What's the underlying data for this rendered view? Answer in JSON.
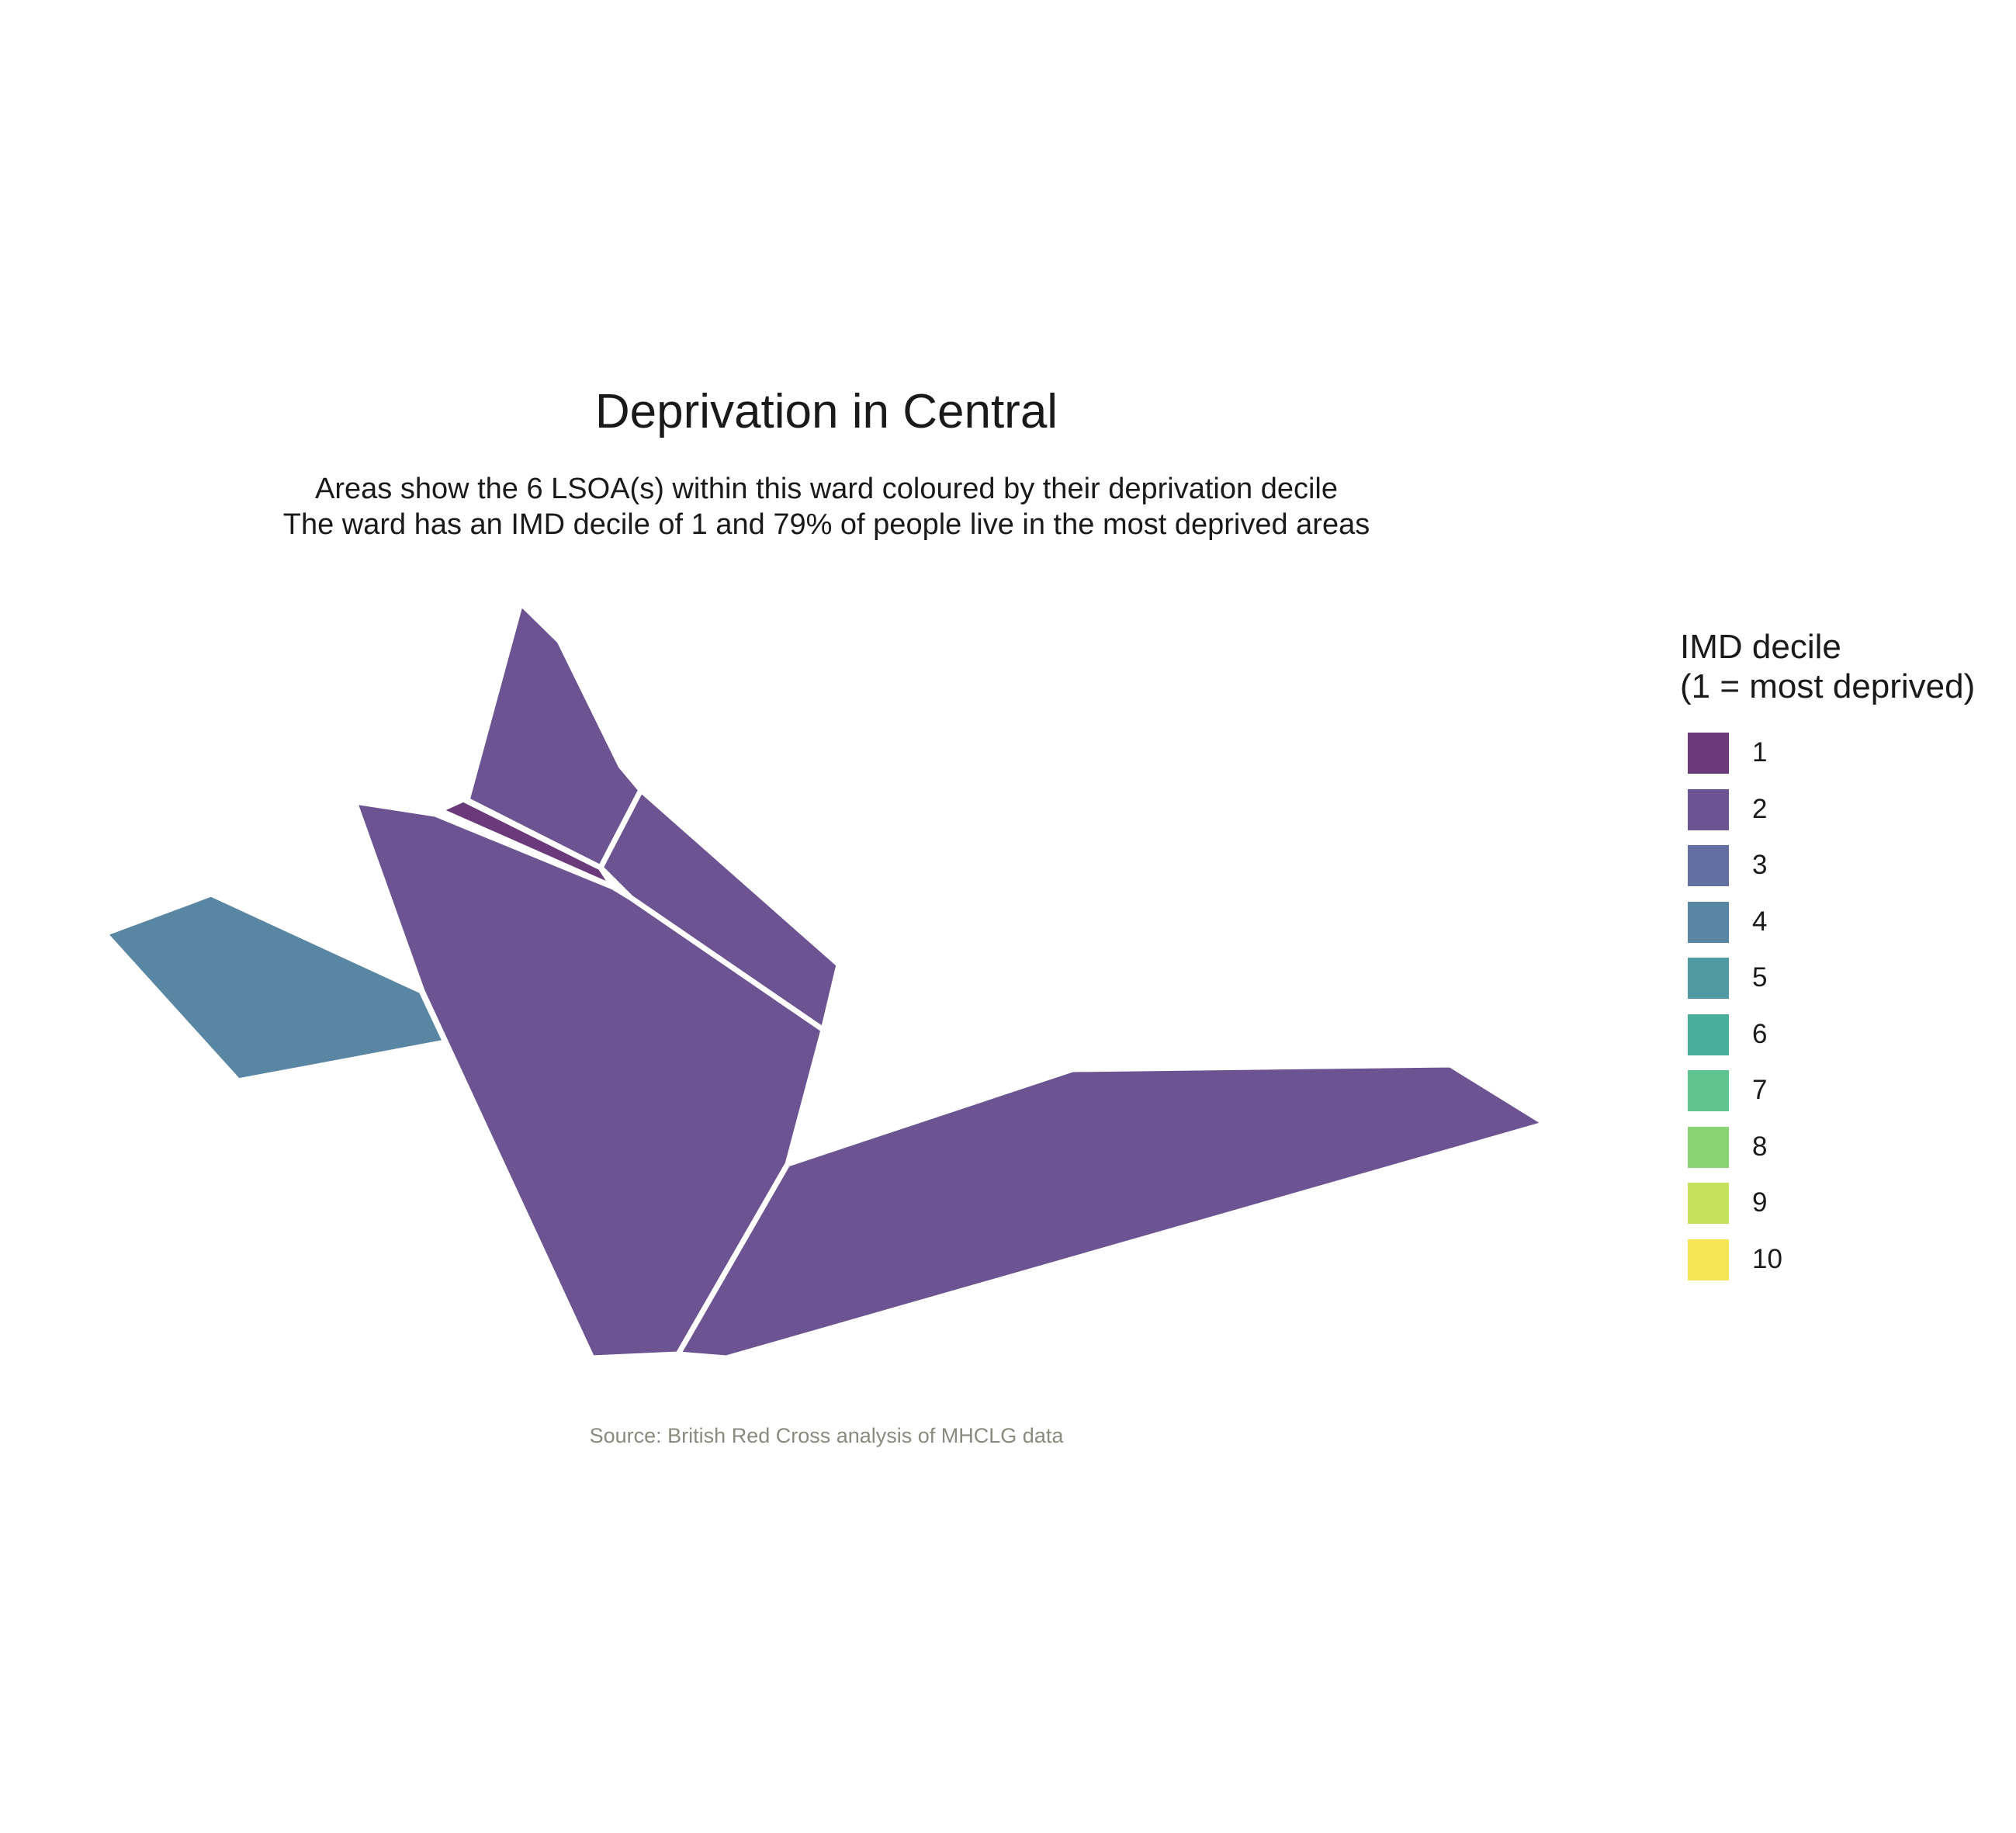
{
  "title": "Deprivation in Central",
  "subtitle": [
    "Areas show the 6 LSOA(s) within this ward coloured by their deprivation decile",
    "The ward has an IMD decile of 1 and 79% of people live in the most deprived areas"
  ],
  "caption": "Source: British Red Cross analysis of MHCLG data",
  "legend": {
    "title_lines": [
      "IMD decile",
      "(1 = most deprived)"
    ],
    "items": [
      {
        "label": "1",
        "color": "#6a3a7a"
      },
      {
        "label": "2",
        "color": "#6c5392"
      },
      {
        "label": "3",
        "color": "#636fa0"
      },
      {
        "label": "4",
        "color": "#5886a3"
      },
      {
        "label": "5",
        "color": "#4f9aa3"
      },
      {
        "label": "6",
        "color": "#4aae9c"
      },
      {
        "label": "7",
        "color": "#5fc490"
      },
      {
        "label": "8",
        "color": "#8bd476"
      },
      {
        "label": "9",
        "color": "#c5e05a"
      },
      {
        "label": "10",
        "color": "#f6e554"
      }
    ]
  },
  "map": {
    "areas": [
      {
        "id": "lsoa-west",
        "decile": 4
      },
      {
        "id": "lsoa-north",
        "decile": 2
      },
      {
        "id": "lsoa-sliver",
        "decile": 1
      },
      {
        "id": "lsoa-northeast",
        "decile": 2
      },
      {
        "id": "lsoa-central",
        "decile": 2
      },
      {
        "id": "lsoa-southeast",
        "decile": 2
      }
    ]
  }
}
